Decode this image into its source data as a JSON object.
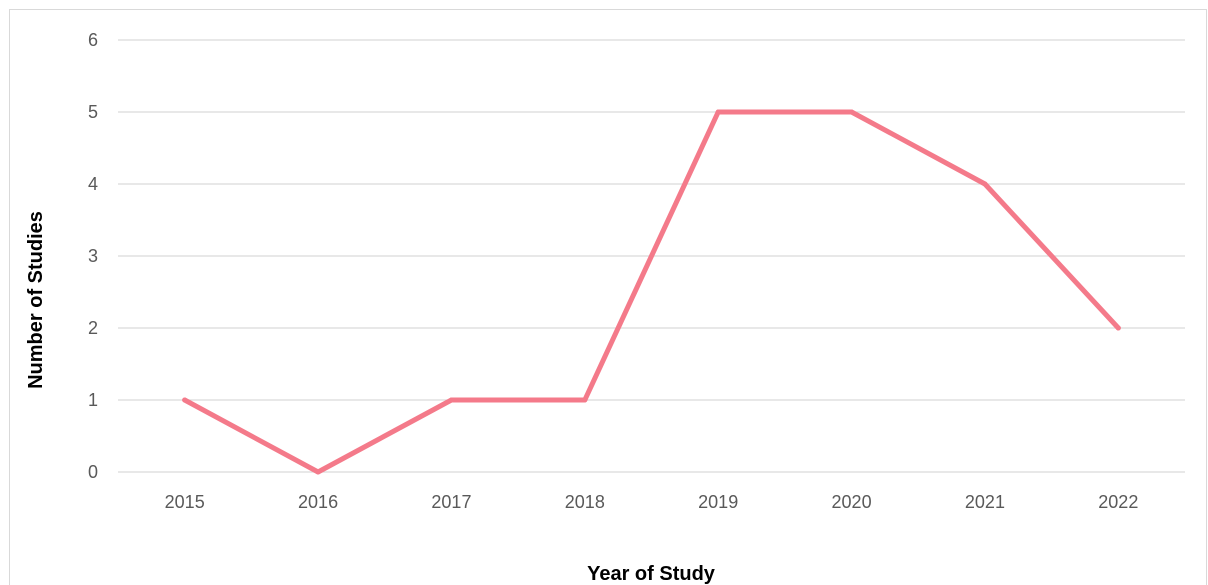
{
  "chart_data": {
    "type": "line",
    "title": "",
    "xlabel": "Year of Study",
    "ylabel": "Number of Studies",
    "categories": [
      "2015",
      "2016",
      "2017",
      "2018",
      "2019",
      "2020",
      "2021",
      "2022"
    ],
    "series": [
      {
        "values": [
          1,
          0,
          1,
          1,
          5,
          5,
          4,
          2
        ],
        "color": "#f47a8a"
      }
    ],
    "ylim": [
      0,
      6
    ],
    "yticks": [
      "0",
      "1",
      "2",
      "3",
      "4",
      "5",
      "6"
    ],
    "grid": true,
    "legend": "none"
  }
}
